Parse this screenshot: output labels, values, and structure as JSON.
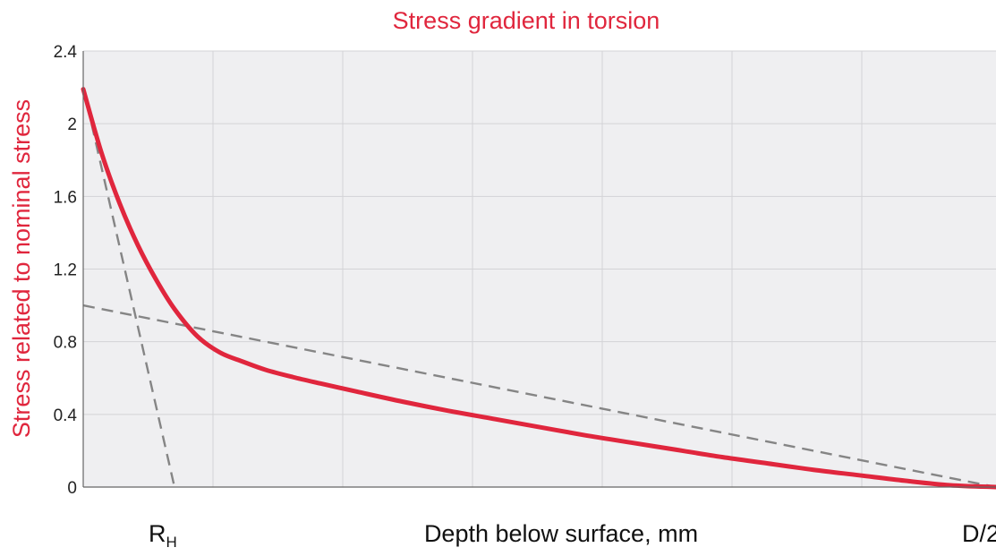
{
  "colors": {
    "accent": "#e0263d",
    "plot_bg": "#efeff1",
    "grid": "#d3d3d6",
    "dashed": "#858585",
    "axis": "#666666"
  },
  "chart_data": {
    "type": "line",
    "title": "Stress gradient in torsion",
    "xlabel": "Depth below surface, mm",
    "ylabel": "Stress related to nominal stress",
    "x_tick_labels": {
      "left_main": "R",
      "left_sub": "H",
      "right": "D/2"
    },
    "ylim": [
      0,
      2.4
    ],
    "yticks": [
      0,
      0.4,
      0.8,
      1.2,
      1.6,
      2,
      2.4
    ],
    "ytick_labels": [
      "0",
      "0.4",
      "0.8",
      "1.2",
      "1.6",
      "2",
      "2.4"
    ],
    "xlim": [
      0,
      1
    ],
    "grid": true,
    "series": [
      {
        "style": "solid",
        "color": "#e0263d",
        "x": [
          0,
          0.02,
          0.04,
          0.06,
          0.08,
          0.1,
          0.125,
          0.15,
          0.175,
          0.2,
          0.23,
          0.26,
          0.3,
          0.35,
          0.4,
          0.45,
          0.5,
          0.55,
          0.6,
          0.65,
          0.7,
          0.75,
          0.8,
          0.85,
          0.9,
          0.95,
          1.0
        ],
        "y": [
          2.19,
          1.84,
          1.56,
          1.33,
          1.14,
          0.98,
          0.83,
          0.74,
          0.69,
          0.645,
          0.605,
          0.57,
          0.525,
          0.47,
          0.42,
          0.375,
          0.33,
          0.285,
          0.245,
          0.205,
          0.165,
          0.13,
          0.095,
          0.065,
          0.035,
          0.01,
          0
        ]
      },
      {
        "style": "dashed",
        "color": "#858585",
        "x": [
          0,
          0.1
        ],
        "y": [
          2.2,
          0
        ]
      },
      {
        "style": "dashed",
        "color": "#858585",
        "x": [
          0,
          1.0
        ],
        "y": [
          1.0,
          0
        ]
      }
    ]
  }
}
